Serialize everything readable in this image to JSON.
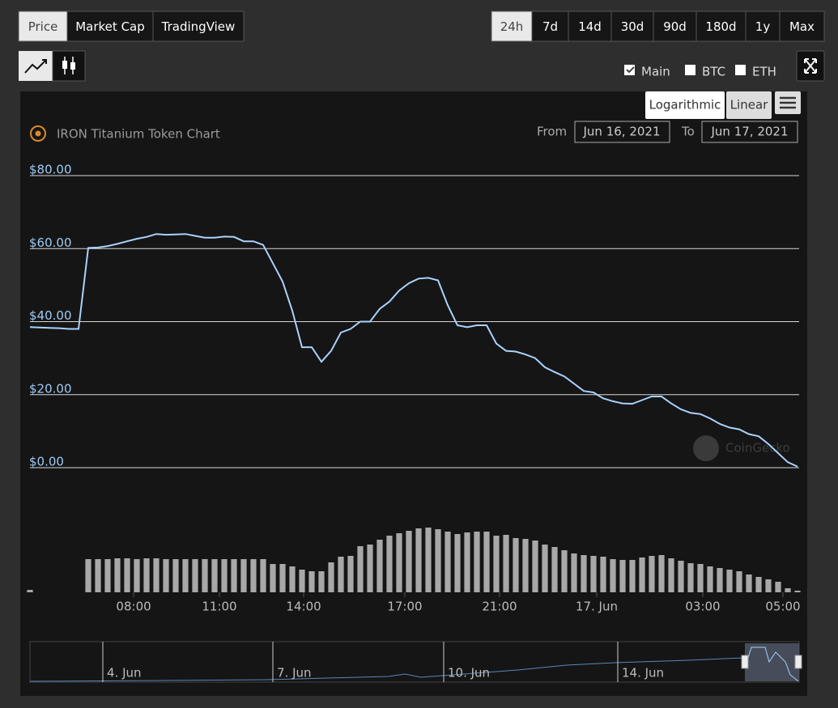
{
  "ui": {
    "view_tabs": [
      "Price",
      "Market Cap",
      "TradingView"
    ],
    "range_tabs": [
      "24h",
      "7d",
      "14d",
      "30d",
      "90d",
      "180d",
      "1y",
      "Max"
    ],
    "compare": [
      "Main",
      "BTC",
      "ETH"
    ],
    "scale_buttons": [
      "Logarithmic",
      "Linear"
    ],
    "from_label": "From",
    "from_date": "Jun 16, 2021",
    "to_label": "To",
    "to_date": "Jun 17, 2021",
    "watermark": "CoinGecko",
    "navigator_labels": [
      "4. Jun",
      "7. Jun",
      "10. Jun",
      "14. Jun"
    ]
  },
  "chart_data": {
    "type": "line",
    "title": "IRON Titanium Token Chart",
    "grid": true,
    "ylim": [
      0,
      80
    ],
    "yticks": [
      {
        "value": 0,
        "label": "$0.00"
      },
      {
        "value": 20,
        "label": "$20.00"
      },
      {
        "value": 40,
        "label": "$40.00"
      },
      {
        "value": 60,
        "label": "$60.00"
      },
      {
        "value": 80,
        "label": "$80.00"
      }
    ],
    "xlim": [
      0,
      79
    ],
    "xticks": [
      {
        "value": 10.67,
        "label": "08:00"
      },
      {
        "value": 19.5,
        "label": "11:00"
      },
      {
        "value": 28.17,
        "label": "14:00"
      },
      {
        "value": 38.58,
        "label": "17:00"
      },
      {
        "value": 48.33,
        "label": "21:00"
      },
      {
        "value": 58.33,
        "label": "17. Jun"
      },
      {
        "value": 69.25,
        "label": "03:00"
      },
      {
        "value": 77.5,
        "label": "05:00"
      }
    ],
    "series": [
      {
        "name": "Price",
        "color": "#a9d2fb",
        "values": [
          38.5,
          38.4,
          38.3,
          38.2,
          38,
          38,
          60.2,
          60.3,
          60.7,
          61.3,
          62,
          62.7,
          63.2,
          64,
          63.8,
          63.9,
          64,
          63.5,
          63,
          63,
          63.3,
          63.2,
          62,
          62,
          61,
          56,
          51,
          43,
          33,
          33,
          29,
          32,
          37,
          38,
          40,
          40,
          43.5,
          45.5,
          48.5,
          50.5,
          51.8,
          52,
          51.3,
          44.5,
          39,
          38.5,
          39,
          39,
          34,
          32,
          31.8,
          31,
          30,
          27.5,
          26.2,
          25,
          23,
          21,
          20.6,
          19,
          18.2,
          17.6,
          17.5,
          18.5,
          19.5,
          19.5,
          17.6,
          16,
          15,
          14.7,
          13.5,
          12,
          11,
          10.5,
          9.2,
          8.6,
          6.5,
          4,
          1.5,
          0.3
        ]
      },
      {
        "name": "Volume",
        "type": "bar",
        "color": "#a8a8a8",
        "values": [
          3,
          0,
          0,
          0,
          0,
          0,
          41,
          41,
          41,
          42,
          42,
          41,
          42,
          42,
          41,
          41,
          41,
          41,
          41,
          41,
          41,
          41,
          41,
          41,
          41,
          35,
          35,
          32,
          28,
          26,
          26,
          37,
          44,
          45,
          57,
          59,
          65,
          70,
          73,
          76,
          79,
          80,
          78,
          75,
          72,
          74,
          75,
          75,
          70,
          71,
          67,
          66,
          64,
          59,
          56,
          52,
          48,
          46,
          45,
          44,
          41,
          40,
          40,
          43,
          45,
          46,
          42,
          39,
          36,
          35,
          32,
          30,
          28,
          26,
          22,
          19,
          16,
          13,
          5,
          2
        ]
      }
    ]
  }
}
